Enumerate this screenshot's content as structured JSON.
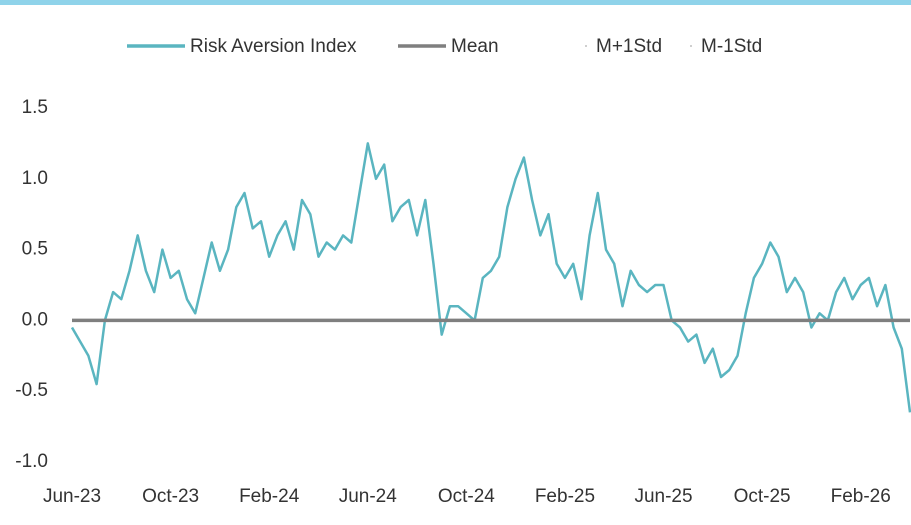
{
  "chart_data": {
    "type": "line",
    "categories": [
      "Jun-23",
      null,
      null,
      null,
      null,
      null,
      null,
      null,
      null,
      null,
      null,
      null,
      "Oct-23",
      null,
      null,
      null,
      null,
      null,
      null,
      null,
      null,
      null,
      null,
      null,
      "Feb-24",
      null,
      null,
      null,
      null,
      null,
      null,
      null,
      null,
      null,
      null,
      null,
      "Jun-24",
      null,
      null,
      null,
      null,
      null,
      null,
      null,
      null,
      null,
      null,
      null,
      "Oct-24",
      null,
      null,
      null,
      null,
      null,
      null,
      null,
      null,
      null,
      null,
      null,
      "Feb-25",
      null,
      null,
      null,
      null,
      null,
      null,
      null,
      null,
      null,
      null,
      null,
      "Jun-25",
      null,
      null,
      null,
      null,
      null,
      null,
      null,
      null,
      null,
      null,
      null,
      "Oct-25",
      null,
      null,
      null,
      null,
      null,
      null,
      null,
      null,
      null,
      null,
      null,
      "Feb-26",
      null,
      null,
      null,
      null,
      null,
      null
    ],
    "series": [
      {
        "name": "Risk Aversion Index",
        "color": "#5ab5c0",
        "values": [
          -0.05,
          -0.15,
          -0.25,
          -0.45,
          0.0,
          0.2,
          0.15,
          0.35,
          0.6,
          0.35,
          0.2,
          0.5,
          0.3,
          0.35,
          0.15,
          0.05,
          0.3,
          0.55,
          0.35,
          0.5,
          0.8,
          0.9,
          0.65,
          0.7,
          0.45,
          0.6,
          0.7,
          0.5,
          0.85,
          0.75,
          0.45,
          0.55,
          0.5,
          0.6,
          0.55,
          0.9,
          1.25,
          1.0,
          1.1,
          0.7,
          0.8,
          0.85,
          0.6,
          0.85,
          0.4,
          -0.1,
          0.1,
          0.1,
          0.05,
          0.0,
          0.3,
          0.35,
          0.45,
          0.8,
          1.0,
          1.15,
          0.85,
          0.6,
          0.75,
          0.4,
          0.3,
          0.4,
          0.15,
          0.6,
          0.9,
          0.5,
          0.4,
          0.1,
          0.35,
          0.25,
          0.2,
          0.25,
          0.25,
          0.0,
          -0.05,
          -0.15,
          -0.1,
          -0.3,
          -0.2,
          -0.4,
          -0.35,
          -0.25,
          0.05,
          0.3,
          0.4,
          0.55,
          0.45,
          0.2,
          0.3,
          0.2,
          -0.05,
          0.05,
          0.0,
          0.2,
          0.3,
          0.15,
          0.25,
          0.3,
          0.1,
          0.25,
          -0.05,
          -0.2,
          -0.65
        ]
      },
      {
        "name": "Mean",
        "color": "#7f7f7f",
        "value": 0
      },
      {
        "name": "M+1Std",
        "color": "#bfbfbf"
      },
      {
        "name": "M-1Std",
        "color": "#bfbfbf"
      }
    ],
    "ylim": [
      -1.0,
      1.5
    ],
    "yticks": [
      {
        "value": -1.0,
        "label": "-1.0"
      },
      -0.5,
      {
        "value": 0.0,
        "label": "0.0"
      },
      0.5,
      {
        "value": 1.0,
        "label": "1.0"
      },
      1.5
    ],
    "grid": false,
    "legend": "top"
  }
}
